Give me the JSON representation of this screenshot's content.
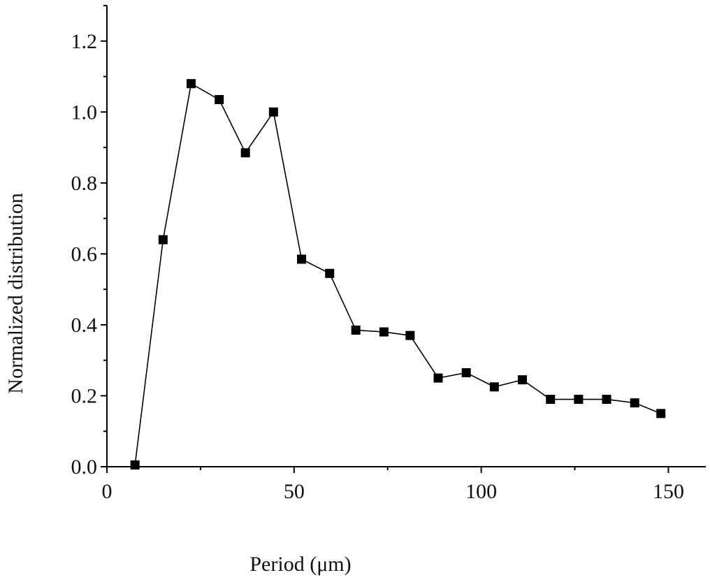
{
  "chart_data": {
    "type": "line",
    "title": "",
    "xlabel": "Period (μm)",
    "ylabel": "Normalized distribution",
    "xlim": [
      0,
      160
    ],
    "ylim": [
      0,
      1.3
    ],
    "xticks": [
      0,
      50,
      100,
      150
    ],
    "xtick_labels": [
      "0",
      "50",
      "100",
      "150"
    ],
    "yticks": [
      0.0,
      0.2,
      0.4,
      0.6,
      0.8,
      1.0,
      1.2
    ],
    "ytick_labels": [
      "0.0",
      "0.2",
      "0.4",
      "0.6",
      "0.8",
      "1.0",
      "1.2"
    ],
    "grid": false,
    "marker": "square",
    "series_color": "#000000",
    "series": [
      {
        "x": [
          7.5,
          15,
          22.5,
          30,
          37,
          44.5,
          52,
          59.5,
          66.5,
          74,
          81,
          88.5,
          96,
          103.5,
          111,
          118.5,
          126,
          133.5,
          141,
          148
        ],
        "values": [
          0.005,
          0.64,
          1.08,
          1.035,
          0.885,
          1.0,
          0.585,
          0.545,
          0.385,
          0.38,
          0.37,
          0.25,
          0.265,
          0.225,
          0.245,
          0.19,
          0.19,
          0.19,
          0.18,
          0.15
        ]
      }
    ]
  }
}
